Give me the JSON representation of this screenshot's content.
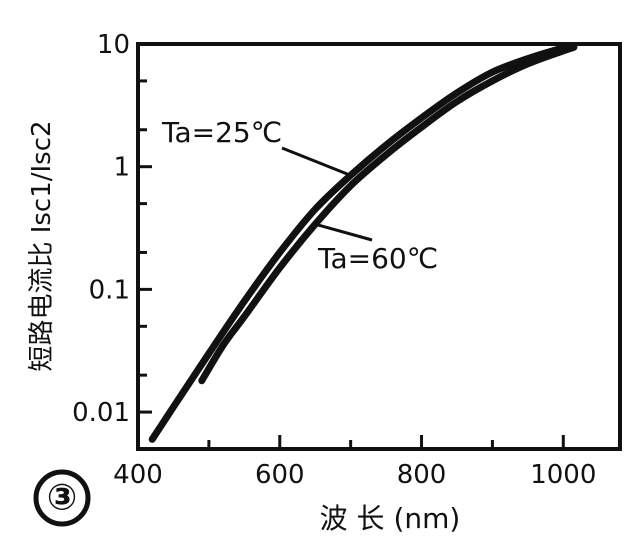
{
  "chart_data": {
    "type": "line",
    "panel_label": "③",
    "xlabel": "波 长 (nm)",
    "ylabel": "短路电流比 Isc1/Isc2",
    "xlim": [
      400,
      1080
    ],
    "ylim": [
      0.005,
      10
    ],
    "y_scale": "log",
    "x_ticks": [
      400,
      600,
      800,
      1000
    ],
    "x_tick_labels": [
      "400",
      "600",
      "800",
      "1000"
    ],
    "y_ticks": [
      0.01,
      0.1,
      1,
      10
    ],
    "y_tick_labels": [
      "0.01",
      "0.1",
      "1",
      "10"
    ],
    "grid": false,
    "series": [
      {
        "name": "Ta=25℃",
        "x": [
          420,
          450,
          500,
          550,
          600,
          650,
          700,
          750,
          800,
          850,
          900,
          950,
          1000,
          1015
        ],
        "y": [
          0.006,
          0.011,
          0.03,
          0.08,
          0.2,
          0.45,
          0.85,
          1.5,
          2.5,
          4.0,
          5.9,
          7.6,
          9.3,
          9.7
        ]
      },
      {
        "name": "Ta=60℃",
        "x": [
          490,
          520,
          550,
          600,
          650,
          700,
          750,
          800,
          850,
          900,
          950,
          1000,
          1015
        ],
        "y": [
          0.018,
          0.035,
          0.06,
          0.15,
          0.34,
          0.7,
          1.25,
          2.1,
          3.4,
          5.0,
          6.9,
          8.8,
          9.4
        ]
      }
    ],
    "annotations": [
      {
        "text": "Ta=25℃",
        "series": "Ta=25℃"
      },
      {
        "text": "Ta=60℃",
        "series": "Ta=60℃"
      }
    ],
    "line_color": "#111111"
  }
}
